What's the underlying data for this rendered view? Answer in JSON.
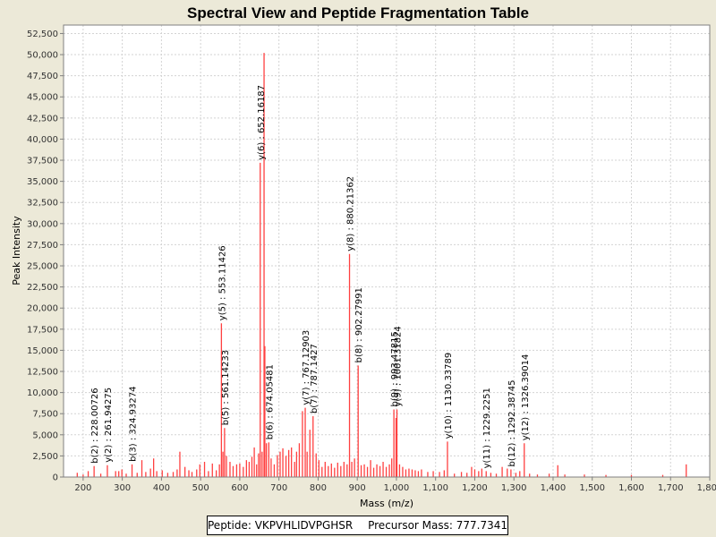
{
  "chart_data": {
    "type": "bar",
    "title": "Spectral View and Peptide Fragmentation Table",
    "xlabel": "Mass (m/z)",
    "ylabel": "Peak Intensity",
    "xlim": [
      150,
      1800
    ],
    "ylim": [
      0,
      53500
    ],
    "x_ticks": [
      200,
      300,
      400,
      500,
      600,
      700,
      800,
      900,
      1000,
      1100,
      1200,
      1300,
      1400,
      1500,
      1600,
      1700,
      1800
    ],
    "x_tick_labels": [
      "200",
      "300",
      "400",
      "500",
      "600",
      "700",
      "800",
      "900",
      "1,000",
      "1,100",
      "1,200",
      "1,300",
      "1,400",
      "1,500",
      "1,600",
      "1,700",
      "1,800"
    ],
    "y_ticks": [
      0,
      2500,
      5000,
      7500,
      10000,
      12500,
      15000,
      17500,
      20000,
      22500,
      25000,
      27500,
      30000,
      32500,
      35000,
      37500,
      40000,
      42500,
      45000,
      47500,
      50000,
      52500
    ],
    "y_tick_labels": [
      "0",
      "2,500",
      "5,000",
      "7,500",
      "10,000",
      "12,500",
      "15,000",
      "17,500",
      "20,000",
      "22,500",
      "25,000",
      "27,500",
      "30,000",
      "32,500",
      "35,000",
      "37,500",
      "40,000",
      "42,500",
      "45,000",
      "47,500",
      "50,000",
      "52,500"
    ],
    "grid": true,
    "series_color": "#ff4040",
    "peaks": [
      [
        185,
        500
      ],
      [
        200,
        300
      ],
      [
        213,
        700
      ],
      [
        228.0,
        1300
      ],
      [
        245,
        400
      ],
      [
        261.9,
        1400
      ],
      [
        283,
        700
      ],
      [
        291,
        700
      ],
      [
        299,
        900
      ],
      [
        310,
        400
      ],
      [
        324.9,
        1500
      ],
      [
        338,
        500
      ],
      [
        350,
        2000
      ],
      [
        360,
        600
      ],
      [
        372,
        1000
      ],
      [
        380,
        2200
      ],
      [
        388,
        700
      ],
      [
        402,
        800
      ],
      [
        416,
        500
      ],
      [
        430,
        600
      ],
      [
        440,
        900
      ],
      [
        447,
        3000
      ],
      [
        460,
        1200
      ],
      [
        470,
        800
      ],
      [
        478,
        600
      ],
      [
        490,
        900
      ],
      [
        498,
        1500
      ],
      [
        510,
        1800
      ],
      [
        520,
        700
      ],
      [
        530,
        1600
      ],
      [
        540,
        800
      ],
      [
        548,
        1500
      ],
      [
        553.1,
        18200
      ],
      [
        557,
        3000
      ],
      [
        561.1,
        5800
      ],
      [
        566,
        2500
      ],
      [
        575,
        1800
      ],
      [
        583,
        1300
      ],
      [
        592,
        1500
      ],
      [
        600,
        1600
      ],
      [
        609,
        1200
      ],
      [
        617,
        2000
      ],
      [
        624,
        1800
      ],
      [
        631,
        2400
      ],
      [
        637,
        3500
      ],
      [
        643,
        1500
      ],
      [
        648,
        2800
      ],
      [
        652.2,
        37200
      ],
      [
        657,
        3000
      ],
      [
        662,
        50200
      ],
      [
        664,
        15500
      ],
      [
        668,
        4000
      ],
      [
        674.1,
        4100
      ],
      [
        680,
        2200
      ],
      [
        688,
        1500
      ],
      [
        696,
        2600
      ],
      [
        703,
        3000
      ],
      [
        710,
        3400
      ],
      [
        718,
        2500
      ],
      [
        725,
        3200
      ],
      [
        732,
        3500
      ],
      [
        740,
        1800
      ],
      [
        745,
        3000
      ],
      [
        752,
        4000
      ],
      [
        760,
        7800
      ],
      [
        767.1,
        8200
      ],
      [
        772,
        3000
      ],
      [
        779,
        5600
      ],
      [
        787.1,
        7200
      ],
      [
        795,
        2800
      ],
      [
        802,
        2000
      ],
      [
        810,
        1200
      ],
      [
        818,
        1800
      ],
      [
        826,
        1300
      ],
      [
        834,
        1600
      ],
      [
        842,
        1100
      ],
      [
        850,
        1700
      ],
      [
        858,
        1300
      ],
      [
        866,
        1800
      ],
      [
        874,
        1500
      ],
      [
        880.2,
        26400
      ],
      [
        886,
        1800
      ],
      [
        893,
        2200
      ],
      [
        902.3,
        13200
      ],
      [
        910,
        1400
      ],
      [
        918,
        1500
      ],
      [
        926,
        1200
      ],
      [
        934,
        2000
      ],
      [
        942,
        1100
      ],
      [
        950,
        1500
      ],
      [
        958,
        1300
      ],
      [
        966,
        1800
      ],
      [
        974,
        1200
      ],
      [
        982,
        1500
      ],
      [
        988,
        2200
      ],
      [
        993.5,
        8000
      ],
      [
        999,
        7000
      ],
      [
        1001.3,
        8000
      ],
      [
        1008,
        1500
      ],
      [
        1016,
        1200
      ],
      [
        1024,
        900
      ],
      [
        1032,
        1000
      ],
      [
        1040,
        900
      ],
      [
        1048,
        800
      ],
      [
        1056,
        700
      ],
      [
        1064,
        900
      ],
      [
        1080,
        600
      ],
      [
        1094,
        700
      ],
      [
        1110,
        600
      ],
      [
        1122,
        800
      ],
      [
        1130.3,
        4200
      ],
      [
        1148,
        400
      ],
      [
        1166,
        600
      ],
      [
        1180,
        500
      ],
      [
        1192,
        1200
      ],
      [
        1200,
        900
      ],
      [
        1210,
        700
      ],
      [
        1218,
        1000
      ],
      [
        1229.2,
        700
      ],
      [
        1241,
        500
      ],
      [
        1255,
        400
      ],
      [
        1270,
        1200
      ],
      [
        1283,
        1000
      ],
      [
        1292.4,
        900
      ],
      [
        1305,
        500
      ],
      [
        1315,
        700
      ],
      [
        1326.4,
        4000
      ],
      [
        1340,
        400
      ],
      [
        1360,
        300
      ],
      [
        1390,
        400
      ],
      [
        1412,
        1400
      ],
      [
        1430,
        300
      ],
      [
        1480,
        300
      ],
      [
        1535,
        250
      ],
      [
        1600,
        250
      ],
      [
        1680,
        250
      ],
      [
        1740,
        1500
      ]
    ],
    "annotations": [
      {
        "mz": 228.0,
        "label": "b(2) : 228.00726",
        "anchor": 1300
      },
      {
        "mz": 261.9,
        "label": "y(2) : 261.94275",
        "anchor": 1400
      },
      {
        "mz": 324.9,
        "label": "b(3) : 324.93274",
        "anchor": 1500
      },
      {
        "mz": 553.1,
        "label": "y(5) : 553.11426",
        "anchor": 18200
      },
      {
        "mz": 561.1,
        "label": "b(5) : 561.14233",
        "anchor": 5800
      },
      {
        "mz": 652.2,
        "label": "y(6) : 652.16187",
        "anchor": 37200
      },
      {
        "mz": 674.1,
        "label": "b(6) : 674.05481",
        "anchor": 4100
      },
      {
        "mz": 767.1,
        "label": "y(7) : 767.12903",
        "anchor": 8200
      },
      {
        "mz": 787.1,
        "label": "b(7) : 787.1427",
        "anchor": 7200
      },
      {
        "mz": 880.2,
        "label": "y(8) : 880.21362",
        "anchor": 26400
      },
      {
        "mz": 902.3,
        "label": "b(8) : 902.27991",
        "anchor": 13200
      },
      {
        "mz": 993.5,
        "label": "b(9) : 993.47815",
        "anchor": 8000
      },
      {
        "mz": 1001.3,
        "label": "y(9) : 1001.31824",
        "anchor": 8000
      },
      {
        "mz": 1130.3,
        "label": "y(10) : 1130.33789",
        "anchor": 4200
      },
      {
        "mz": 1229.2,
        "label": "y(11) : 1229.2251",
        "anchor": 700
      },
      {
        "mz": 1292.4,
        "label": "b(12) : 1292.38745",
        "anchor": 900
      },
      {
        "mz": 1326.4,
        "label": "y(12) : 1326.39014",
        "anchor": 4000
      }
    ]
  },
  "legend": {
    "peptide_label": "Peptide: VKPVHLIDVPGHSR",
    "precursor_label": "Precursor Mass: 777.7341"
  }
}
